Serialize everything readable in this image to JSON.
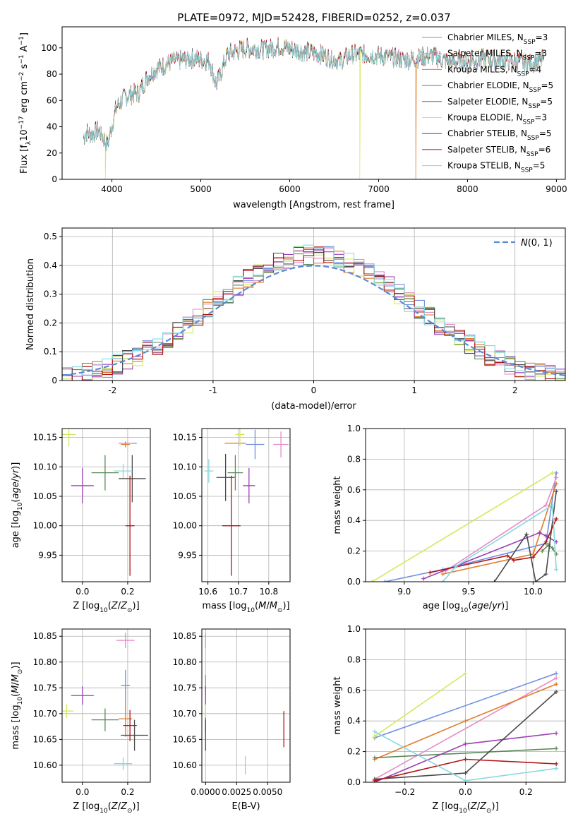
{
  "figure_title": "PLATE=0972, MJD=52428, FIBERID=0252, z=0.037",
  "colors": [
    "#6f8fe0",
    "#e58bc8",
    "#e07c2a",
    "#5a8a5a",
    "#9c3fb5",
    "#d4e85a",
    "#4a4a4a",
    "#b01515",
    "#86d8de"
  ],
  "models": [
    {
      "label": "Chabrier MILES, N",
      "nssp": "3"
    },
    {
      "label": "Salpeter MILES, N",
      "nssp": "3"
    },
    {
      "label": "Kroupa MILES, N",
      "nssp": "4"
    },
    {
      "label": "Chabrier ELODIE, N",
      "nssp": "5"
    },
    {
      "label": "Salpeter ELODIE, N",
      "nssp": "5"
    },
    {
      "label": "Kroupa ELODIE, N",
      "nssp": "3"
    },
    {
      "label": "Chabrier STELIB, N",
      "nssp": "5"
    },
    {
      "label": "Salpeter STELIB, N",
      "nssp": "6"
    },
    {
      "label": "Kroupa STELIB, N",
      "nssp": "5"
    }
  ],
  "legend_sub": "SSP",
  "chart_data": [
    {
      "id": "spectrum",
      "type": "line",
      "title": "PLATE=0972, MJD=52428, FIBERID=0252, z=0.037",
      "xlabel": "wavelength [Angstrom, rest frame]",
      "ylabel": "Flux [f",
      "xlim": [
        3440,
        9100
      ],
      "ylim": [
        0,
        116
      ],
      "xticks": [
        4000,
        5000,
        6000,
        7000,
        8000,
        9000
      ],
      "yticks": [
        0,
        20,
        40,
        60,
        80,
        100
      ],
      "grid": false,
      "legend": "top-right",
      "series_x_range": [
        3680,
        8860
      ],
      "spectrum_shape": [
        [
          3680,
          32
        ],
        [
          3720,
          36
        ],
        [
          3780,
          34
        ],
        [
          3850,
          38
        ],
        [
          3950,
          26
        ],
        [
          4050,
          55
        ],
        [
          4150,
          63
        ],
        [
          4300,
          66
        ],
        [
          4400,
          78
        ],
        [
          4500,
          84
        ],
        [
          4700,
          90
        ],
        [
          4900,
          92
        ],
        [
          5100,
          90
        ],
        [
          5175,
          72
        ],
        [
          5300,
          95
        ],
        [
          5500,
          100
        ],
        [
          5700,
          99
        ],
        [
          5900,
          101
        ],
        [
          6100,
          98
        ],
        [
          6300,
          96
        ],
        [
          6563,
          90
        ],
        [
          6700,
          95
        ],
        [
          6900,
          95
        ],
        [
          7100,
          93
        ],
        [
          7300,
          91
        ],
        [
          7600,
          94
        ],
        [
          7800,
          89
        ],
        [
          8000,
          90
        ],
        [
          8200,
          92
        ],
        [
          8500,
          90
        ],
        [
          8700,
          88
        ],
        [
          8860,
          91
        ]
      ],
      "dropouts": [
        {
          "series": "Kroupa ELODIE",
          "x": 3925
        },
        {
          "series": "Kroupa ELODIE",
          "x": 6790
        },
        {
          "series": "Kroupa MILES",
          "x": 7420
        }
      ]
    },
    {
      "id": "residual-histogram",
      "type": "bar",
      "xlabel": "(data-model)/error",
      "ylabel": "Normed distribution",
      "xlim": [
        -2.5,
        2.5
      ],
      "ylim": [
        0,
        0.53
      ],
      "xticks": [
        -2,
        -1,
        0,
        1,
        2
      ],
      "yticks": [
        0.0,
        0.1,
        0.2,
        0.3,
        0.4,
        0.5
      ],
      "grid": true,
      "legend": "top-right",
      "reference_label": "N(0,1)",
      "bin_width": 0.1
    },
    {
      "id": "age-vs-Z",
      "type": "scatter",
      "xlabel": "Z [log10(Z/Z⊙)]",
      "ylabel": "age  [log10(age/yr)]",
      "xlim": [
        -0.09,
        0.3
      ],
      "ylim": [
        9.905,
        10.165
      ],
      "xticks": [
        0.0,
        0.2
      ],
      "xticklabels": [
        "0.0",
        "0.2"
      ],
      "yticks": [
        9.95,
        10.0,
        10.05,
        10.1,
        10.15
      ],
      "yticklabels": [
        "9.95",
        "10.00",
        "10.05",
        "10.10",
        "10.15"
      ],
      "grid": true,
      "points": [
        {
          "x": 0.2,
          "y": 10.14,
          "xerr": 0.04,
          "yerr": 0.0
        },
        {
          "x": 0.19,
          "y": 10.14,
          "xerr": 0.03,
          "yerr": 0.0
        },
        {
          "x": 0.19,
          "y": 10.138,
          "xerr": 0.02,
          "yerr": 0.005
        },
        {
          "x": 0.1,
          "y": 10.09,
          "xerr": 0.06,
          "yerr": 0.03
        },
        {
          "x": 0.0,
          "y": 10.068,
          "xerr": 0.05,
          "yerr": 0.03
        },
        {
          "x": -0.06,
          "y": 10.155,
          "xerr": 0.03,
          "yerr": 0.02
        },
        {
          "x": 0.22,
          "y": 10.08,
          "xerr": 0.06,
          "yerr": 0.04
        },
        {
          "x": 0.21,
          "y": 10.0,
          "xerr": 0.02,
          "yerr": 0.085
        },
        {
          "x": 0.18,
          "y": 10.093,
          "xerr": 0.04,
          "yerr": 0.012
        }
      ]
    },
    {
      "id": "age-vs-mass",
      "type": "scatter",
      "xlabel": "mass [log10(M/M⊙)]",
      "ylabel": "",
      "xlim": [
        10.58,
        10.87
      ],
      "ylim": [
        9.905,
        10.165
      ],
      "xticks": [
        10.6,
        10.7,
        10.8
      ],
      "xticklabels": [
        "10.6",
        "10.7",
        "10.8"
      ],
      "yticks": [
        9.95,
        10.0,
        10.05,
        10.1,
        10.15
      ],
      "yticklabels": [
        "9.95",
        "10.00",
        "10.05",
        "10.10",
        "10.15"
      ],
      "grid": true,
      "points": [
        {
          "x": 10.755,
          "y": 10.138,
          "xerr": 0.03,
          "yerr": 0.025
        },
        {
          "x": 10.84,
          "y": 10.138,
          "xerr": 0.025,
          "yerr": 0.022
        },
        {
          "x": 10.69,
          "y": 10.14,
          "xerr": 0.035,
          "yerr": 0.0
        },
        {
          "x": 10.69,
          "y": 10.09,
          "xerr": 0.025,
          "yerr": 0.03
        },
        {
          "x": 10.735,
          "y": 10.068,
          "xerr": 0.02,
          "yerr": 0.03
        },
        {
          "x": 10.705,
          "y": 10.155,
          "xerr": 0.015,
          "yerr": 0.02
        },
        {
          "x": 10.658,
          "y": 10.082,
          "xerr": 0.03,
          "yerr": 0.04
        },
        {
          "x": 10.677,
          "y": 10.0,
          "xerr": 0.03,
          "yerr": 0.085
        },
        {
          "x": 10.603,
          "y": 10.093,
          "xerr": 0.015,
          "yerr": 0.02
        }
      ]
    },
    {
      "id": "mass-weight-vs-age",
      "type": "line",
      "xlabel": "age  [log10(age/yr)]",
      "ylabel": "mass weight",
      "xlim": [
        8.7,
        10.25
      ],
      "ylim": [
        0,
        1
      ],
      "xticks": [
        9.0,
        9.5,
        10.0
      ],
      "xticklabels": [
        "9.0",
        "9.5",
        "10.0"
      ],
      "yticks": [
        0.0,
        0.2,
        0.4,
        0.6,
        0.8,
        1.0
      ],
      "yticklabels": [
        "0.0",
        "0.2",
        "0.4",
        "0.6",
        "0.8",
        "1.0"
      ],
      "grid": true,
      "series": [
        {
          "points": [
            [
              8.85,
              0.0
            ],
            [
              9.3,
              0.08
            ],
            [
              10.1,
              0.25
            ],
            [
              10.18,
              0.71
            ]
          ]
        },
        {
          "points": [
            [
              9.32,
              0.07
            ],
            [
              10.1,
              0.5
            ],
            [
              10.18,
              0.68
            ]
          ]
        },
        {
          "points": [
            [
              9.3,
              0.05
            ],
            [
              10.0,
              0.18
            ],
            [
              10.18,
              0.64
            ]
          ]
        },
        {
          "points": [
            [
              10.07,
              0.2
            ],
            [
              10.12,
              0.24
            ],
            [
              10.15,
              0.22
            ],
            [
              10.18,
              0.18
            ]
          ]
        },
        {
          "points": [
            [
              9.15,
              0.02
            ],
            [
              10.05,
              0.32
            ],
            [
              10.1,
              0.3
            ],
            [
              10.18,
              0.26
            ]
          ]
        },
        {
          "points": [
            [
              8.75,
              0.0
            ],
            [
              10.15,
              0.71
            ]
          ]
        },
        {
          "points": [
            [
              9.7,
              0.0
            ],
            [
              9.95,
              0.31
            ],
            [
              10.02,
              0.0
            ],
            [
              10.1,
              0.05
            ],
            [
              10.18,
              0.59
            ]
          ]
        },
        {
          "points": [
            [
              9.2,
              0.06
            ],
            [
              9.8,
              0.17
            ],
            [
              9.85,
              0.14
            ],
            [
              10.0,
              0.16
            ],
            [
              10.1,
              0.26
            ],
            [
              10.18,
              0.41
            ]
          ]
        },
        {
          "points": [
            [
              9.3,
              0.0
            ],
            [
              9.4,
              0.1
            ],
            [
              10.15,
              0.5
            ],
            [
              10.18,
              0.08
            ]
          ]
        }
      ]
    },
    {
      "id": "mass-vs-Z",
      "type": "scatter",
      "xlabel": "Z [log10(Z/Z⊙)]",
      "ylabel": "mass [log10(M/M⊙)]",
      "xlim": [
        -0.09,
        0.3
      ],
      "ylim": [
        10.567,
        10.864
      ],
      "xticks": [
        0.0,
        0.2
      ],
      "xticklabels": [
        "0.0",
        "0.2"
      ],
      "yticks": [
        10.6,
        10.65,
        10.7,
        10.75,
        10.8,
        10.85
      ],
      "yticklabels": [
        "10.60",
        "10.65",
        "10.70",
        "10.75",
        "10.80",
        "10.85"
      ],
      "grid": true,
      "points": [
        {
          "x": 0.19,
          "y": 10.755,
          "xerr": 0.02,
          "yerr": 0.03
        },
        {
          "x": 0.19,
          "y": 10.842,
          "xerr": 0.04,
          "yerr": 0.015
        },
        {
          "x": 0.19,
          "y": 10.69,
          "xerr": 0.03,
          "yerr": 0.035
        },
        {
          "x": 0.1,
          "y": 10.688,
          "xerr": 0.06,
          "yerr": 0.022
        },
        {
          "x": 0.0,
          "y": 10.735,
          "xerr": 0.05,
          "yerr": 0.018
        },
        {
          "x": -0.07,
          "y": 10.705,
          "xerr": 0.03,
          "yerr": 0.013
        },
        {
          "x": 0.23,
          "y": 10.658,
          "xerr": 0.06,
          "yerr": 0.03
        },
        {
          "x": 0.21,
          "y": 10.677,
          "xerr": 0.03,
          "yerr": 0.03
        },
        {
          "x": 0.18,
          "y": 10.603,
          "xerr": 0.04,
          "yerr": 0.012
        }
      ]
    },
    {
      "id": "mass-vs-ebv",
      "type": "scatter",
      "xlabel": "E(B-V)",
      "ylabel": "",
      "xlim": [
        -0.0003,
        0.0068
      ],
      "ylim": [
        10.567,
        10.864
      ],
      "xticks": [
        0.0,
        0.0025,
        0.005
      ],
      "xticklabels": [
        "0.0000",
        "0.0025",
        "0.0050"
      ],
      "yticks": [
        10.6,
        10.65,
        10.7,
        10.75,
        10.8,
        10.85
      ],
      "yticklabels": [
        "10.60",
        "10.65",
        "10.70",
        "10.75",
        "10.80",
        "10.85"
      ],
      "grid": true,
      "points": [
        {
          "x": 0.0,
          "y": 10.755,
          "xerr": 0.0,
          "yerr": 0.02
        },
        {
          "x": 0.0,
          "y": 10.842,
          "xerr": 0.0,
          "yerr": 0.015
        },
        {
          "x": 0.0,
          "y": 10.69,
          "xerr": 0.0,
          "yerr": 0.03
        },
        {
          "x": 0.0,
          "y": 10.688,
          "xerr": 0.0,
          "yerr": 0.022
        },
        {
          "x": 0.0,
          "y": 10.735,
          "xerr": 0.0,
          "yerr": 0.018
        },
        {
          "x": 0.0,
          "y": 10.705,
          "xerr": 0.0,
          "yerr": 0.013
        },
        {
          "x": 0.0,
          "y": 10.658,
          "xerr": 0.0,
          "yerr": 0.03
        },
        {
          "x": 0.0063,
          "y": 10.67,
          "xerr": 0.0,
          "yerr": 0.035
        },
        {
          "x": 0.0032,
          "y": 10.6,
          "xerr": 0.0,
          "yerr": 0.018
        }
      ]
    },
    {
      "id": "mass-weight-vs-Z",
      "type": "line",
      "xlabel": "Z [log10(Z/Z⊙)]",
      "ylabel": "mass weight",
      "xlim": [
        -0.33,
        0.33
      ],
      "ylim": [
        0,
        1
      ],
      "xticks": [
        -0.2,
        0.0,
        0.2
      ],
      "xticklabels": [
        "−0.2",
        "0.0",
        "0.2"
      ],
      "yticks": [
        0.0,
        0.2,
        0.4,
        0.6,
        0.8,
        1.0
      ],
      "yticklabels": [
        "0.0",
        "0.2",
        "0.4",
        "0.6",
        "0.8",
        "1.0"
      ],
      "grid": true,
      "series": [
        {
          "points": [
            [
              -0.3,
              0.29
            ],
            [
              0.3,
              0.71
            ]
          ]
        },
        {
          "points": [
            [
              -0.3,
              0.02
            ],
            [
              0.3,
              0.68
            ]
          ]
        },
        {
          "points": [
            [
              -0.3,
              0.15
            ],
            [
              0.0,
              0.4
            ],
            [
              0.3,
              0.64
            ]
          ]
        },
        {
          "points": [
            [
              -0.3,
              0.16
            ],
            [
              0.3,
              0.22
            ]
          ]
        },
        {
          "points": [
            [
              -0.3,
              0.0
            ],
            [
              0.0,
              0.25
            ],
            [
              0.3,
              0.32
            ]
          ]
        },
        {
          "points": [
            [
              -0.3,
              0.3
            ],
            [
              0.0,
              0.71
            ]
          ]
        },
        {
          "points": [
            [
              -0.3,
              0.02
            ],
            [
              0.0,
              0.06
            ],
            [
              0.3,
              0.59
            ]
          ]
        },
        {
          "points": [
            [
              -0.3,
              0.01
            ],
            [
              0.0,
              0.15
            ],
            [
              0.3,
              0.12
            ]
          ]
        },
        {
          "points": [
            [
              -0.3,
              0.33
            ],
            [
              0.0,
              0.01
            ],
            [
              0.3,
              0.09
            ]
          ]
        }
      ]
    }
  ]
}
